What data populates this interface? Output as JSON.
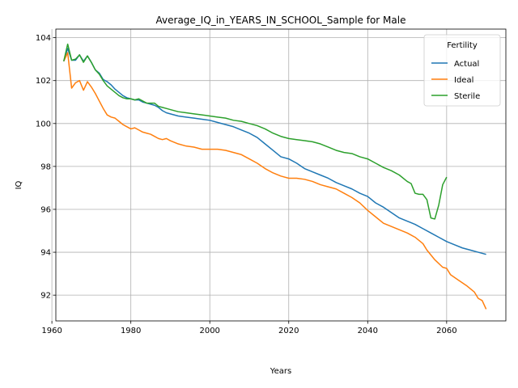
{
  "chart_data": {
    "type": "line",
    "title": "Average_IQ_in_YEARS_IN_SCHOOL_Sample for Male",
    "xlabel": "Years",
    "ylabel": "IQ",
    "xlim": [
      1961,
      2075
    ],
    "ylim": [
      90.8,
      104.4
    ],
    "xticks": [
      1960,
      1980,
      2000,
      2020,
      2040,
      2060
    ],
    "yticks": [
      92,
      94,
      96,
      98,
      100,
      102,
      104
    ],
    "grid": true,
    "legend": {
      "title": "Fertility",
      "placement": "top-right"
    },
    "series": [
      {
        "name": "Actual",
        "color": "#1f77b4",
        "points": [
          [
            1963,
            102.9
          ],
          [
            1964,
            103.5
          ],
          [
            1965,
            102.95
          ],
          [
            1966,
            102.95
          ],
          [
            1967,
            103.2
          ],
          [
            1968,
            102.9
          ],
          [
            1969,
            103.15
          ],
          [
            1970,
            102.85
          ],
          [
            1971,
            102.5
          ],
          [
            1972,
            102.35
          ],
          [
            1973,
            102.05
          ],
          [
            1974,
            101.95
          ],
          [
            1975,
            101.8
          ],
          [
            1976,
            101.6
          ],
          [
            1977,
            101.45
          ],
          [
            1978,
            101.3
          ],
          [
            1979,
            101.2
          ],
          [
            1980,
            101.15
          ],
          [
            1981,
            101.1
          ],
          [
            1982,
            101.1
          ],
          [
            1983,
            101.0
          ],
          [
            1984,
            100.95
          ],
          [
            1985,
            100.9
          ],
          [
            1986,
            100.85
          ],
          [
            1987,
            100.75
          ],
          [
            1988,
            100.6
          ],
          [
            1989,
            100.5
          ],
          [
            1990,
            100.45
          ],
          [
            1992,
            100.35
          ],
          [
            1994,
            100.3
          ],
          [
            1996,
            100.25
          ],
          [
            1998,
            100.2
          ],
          [
            2000,
            100.15
          ],
          [
            2002,
            100.05
          ],
          [
            2004,
            99.95
          ],
          [
            2006,
            99.85
          ],
          [
            2008,
            99.7
          ],
          [
            2010,
            99.55
          ],
          [
            2012,
            99.35
          ],
          [
            2014,
            99.05
          ],
          [
            2016,
            98.75
          ],
          [
            2018,
            98.45
          ],
          [
            2020,
            98.35
          ],
          [
            2022,
            98.15
          ],
          [
            2024,
            97.9
          ],
          [
            2026,
            97.75
          ],
          [
            2028,
            97.6
          ],
          [
            2030,
            97.45
          ],
          [
            2032,
            97.25
          ],
          [
            2034,
            97.1
          ],
          [
            2036,
            96.95
          ],
          [
            2038,
            96.75
          ],
          [
            2040,
            96.6
          ],
          [
            2042,
            96.3
          ],
          [
            2044,
            96.1
          ],
          [
            2046,
            95.85
          ],
          [
            2048,
            95.6
          ],
          [
            2050,
            95.45
          ],
          [
            2052,
            95.3
          ],
          [
            2054,
            95.1
          ],
          [
            2056,
            94.9
          ],
          [
            2058,
            94.7
          ],
          [
            2060,
            94.5
          ],
          [
            2062,
            94.35
          ],
          [
            2064,
            94.2
          ],
          [
            2066,
            94.1
          ],
          [
            2068,
            94.0
          ],
          [
            2070,
            93.9
          ]
        ]
      },
      {
        "name": "Ideal",
        "color": "#ff7f0e",
        "points": [
          [
            1963,
            102.9
          ],
          [
            1964,
            103.3
          ],
          [
            1965,
            101.65
          ],
          [
            1966,
            101.9
          ],
          [
            1967,
            102.0
          ],
          [
            1968,
            101.55
          ],
          [
            1969,
            101.95
          ],
          [
            1970,
            101.7
          ],
          [
            1971,
            101.4
          ],
          [
            1972,
            101.05
          ],
          [
            1973,
            100.7
          ],
          [
            1974,
            100.4
          ],
          [
            1975,
            100.3
          ],
          [
            1976,
            100.25
          ],
          [
            1977,
            100.1
          ],
          [
            1978,
            99.95
          ],
          [
            1979,
            99.85
          ],
          [
            1980,
            99.75
          ],
          [
            1981,
            99.8
          ],
          [
            1982,
            99.7
          ],
          [
            1983,
            99.6
          ],
          [
            1984,
            99.55
          ],
          [
            1985,
            99.5
          ],
          [
            1986,
            99.4
          ],
          [
            1987,
            99.3
          ],
          [
            1988,
            99.25
          ],
          [
            1989,
            99.3
          ],
          [
            1990,
            99.2
          ],
          [
            1992,
            99.05
          ],
          [
            1994,
            98.95
          ],
          [
            1996,
            98.9
          ],
          [
            1998,
            98.8
          ],
          [
            2000,
            98.8
          ],
          [
            2002,
            98.8
          ],
          [
            2004,
            98.75
          ],
          [
            2006,
            98.65
          ],
          [
            2008,
            98.55
          ],
          [
            2010,
            98.35
          ],
          [
            2012,
            98.15
          ],
          [
            2014,
            97.9
          ],
          [
            2016,
            97.7
          ],
          [
            2018,
            97.55
          ],
          [
            2020,
            97.45
          ],
          [
            2022,
            97.45
          ],
          [
            2024,
            97.4
          ],
          [
            2026,
            97.3
          ],
          [
            2028,
            97.15
          ],
          [
            2030,
            97.05
          ],
          [
            2032,
            96.95
          ],
          [
            2034,
            96.75
          ],
          [
            2036,
            96.55
          ],
          [
            2038,
            96.3
          ],
          [
            2040,
            95.95
          ],
          [
            2042,
            95.65
          ],
          [
            2044,
            95.35
          ],
          [
            2046,
            95.2
          ],
          [
            2048,
            95.05
          ],
          [
            2050,
            94.9
          ],
          [
            2052,
            94.7
          ],
          [
            2054,
            94.4
          ],
          [
            2055,
            94.1
          ],
          [
            2057,
            93.65
          ],
          [
            2059,
            93.3
          ],
          [
            2060,
            93.25
          ],
          [
            2061,
            92.95
          ],
          [
            2063,
            92.7
          ],
          [
            2065,
            92.45
          ],
          [
            2067,
            92.15
          ],
          [
            2068,
            91.85
          ],
          [
            2069,
            91.75
          ],
          [
            2070,
            91.35
          ]
        ]
      },
      {
        "name": "Sterile",
        "color": "#2ca02c",
        "points": [
          [
            1963,
            102.9
          ],
          [
            1964,
            103.7
          ],
          [
            1965,
            102.95
          ],
          [
            1966,
            103.0
          ],
          [
            1967,
            103.2
          ],
          [
            1968,
            102.85
          ],
          [
            1969,
            103.15
          ],
          [
            1970,
            102.85
          ],
          [
            1971,
            102.5
          ],
          [
            1972,
            102.3
          ],
          [
            1973,
            102.0
          ],
          [
            1974,
            101.75
          ],
          [
            1975,
            101.6
          ],
          [
            1976,
            101.45
          ],
          [
            1977,
            101.3
          ],
          [
            1978,
            101.2
          ],
          [
            1979,
            101.15
          ],
          [
            1980,
            101.15
          ],
          [
            1981,
            101.1
          ],
          [
            1982,
            101.15
          ],
          [
            1983,
            101.05
          ],
          [
            1984,
            100.95
          ],
          [
            1985,
            100.95
          ],
          [
            1986,
            100.95
          ],
          [
            1987,
            100.8
          ],
          [
            1988,
            100.75
          ],
          [
            1989,
            100.7
          ],
          [
            1990,
            100.65
          ],
          [
            1992,
            100.55
          ],
          [
            1994,
            100.5
          ],
          [
            1996,
            100.45
          ],
          [
            1998,
            100.4
          ],
          [
            2000,
            100.35
          ],
          [
            2002,
            100.3
          ],
          [
            2004,
            100.25
          ],
          [
            2006,
            100.15
          ],
          [
            2008,
            100.1
          ],
          [
            2010,
            100.0
          ],
          [
            2012,
            99.9
          ],
          [
            2014,
            99.75
          ],
          [
            2016,
            99.55
          ],
          [
            2018,
            99.4
          ],
          [
            2020,
            99.3
          ],
          [
            2022,
            99.25
          ],
          [
            2024,
            99.2
          ],
          [
            2026,
            99.15
          ],
          [
            2028,
            99.05
          ],
          [
            2030,
            98.9
          ],
          [
            2032,
            98.75
          ],
          [
            2034,
            98.65
          ],
          [
            2036,
            98.6
          ],
          [
            2038,
            98.45
          ],
          [
            2040,
            98.35
          ],
          [
            2042,
            98.15
          ],
          [
            2044,
            97.95
          ],
          [
            2046,
            97.8
          ],
          [
            2048,
            97.6
          ],
          [
            2050,
            97.3
          ],
          [
            2051,
            97.2
          ],
          [
            2052,
            96.75
          ],
          [
            2053,
            96.7
          ],
          [
            2054,
            96.7
          ],
          [
            2055,
            96.45
          ],
          [
            2056,
            95.6
          ],
          [
            2057,
            95.55
          ],
          [
            2058,
            96.2
          ],
          [
            2059,
            97.15
          ],
          [
            2060,
            97.5
          ]
        ]
      }
    ]
  }
}
